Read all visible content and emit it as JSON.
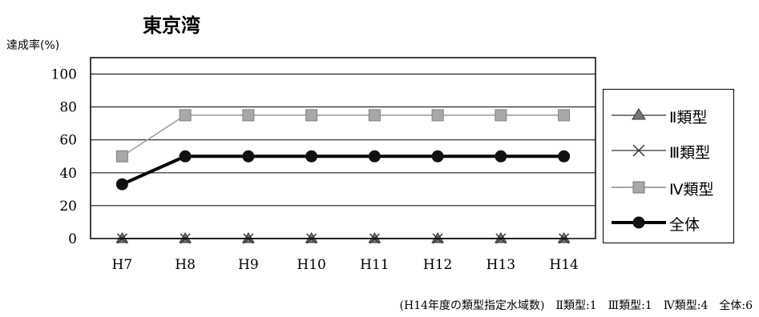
{
  "page": {
    "title": "東京湾",
    "ylabel": "達成率(%)",
    "footnote": "(H14年度の類型指定水域数)　Ⅱ類型:1　Ⅲ類型:1　Ⅳ類型:4　全体:6"
  },
  "chart_data": {
    "type": "line",
    "title": "東京湾",
    "xlabel": "",
    "ylabel": "達成率(%)",
    "categories": [
      "H7",
      "H8",
      "H9",
      "H10",
      "H11",
      "H12",
      "H13",
      "H14"
    ],
    "ylim": [
      0,
      100
    ],
    "yticks": [
      0,
      20,
      40,
      60,
      80,
      100
    ],
    "grid": true,
    "legend": "right",
    "series": [
      {
        "name": "Ⅱ類型",
        "values": [
          0,
          0,
          0,
          0,
          0,
          0,
          0,
          0
        ],
        "marker": "triangle",
        "color": "#555555"
      },
      {
        "name": "Ⅲ類型",
        "values": [
          0,
          0,
          0,
          0,
          0,
          0,
          0,
          0
        ],
        "marker": "x",
        "color": "#555555"
      },
      {
        "name": "Ⅳ類型",
        "values": [
          50,
          75,
          75,
          75,
          75,
          75,
          75,
          75
        ],
        "marker": "square",
        "color": "#9a9a9a"
      },
      {
        "name": "全体",
        "values": [
          33,
          50,
          50,
          50,
          50,
          50,
          50,
          50
        ],
        "marker": "circle",
        "color": "#000000"
      }
    ]
  }
}
